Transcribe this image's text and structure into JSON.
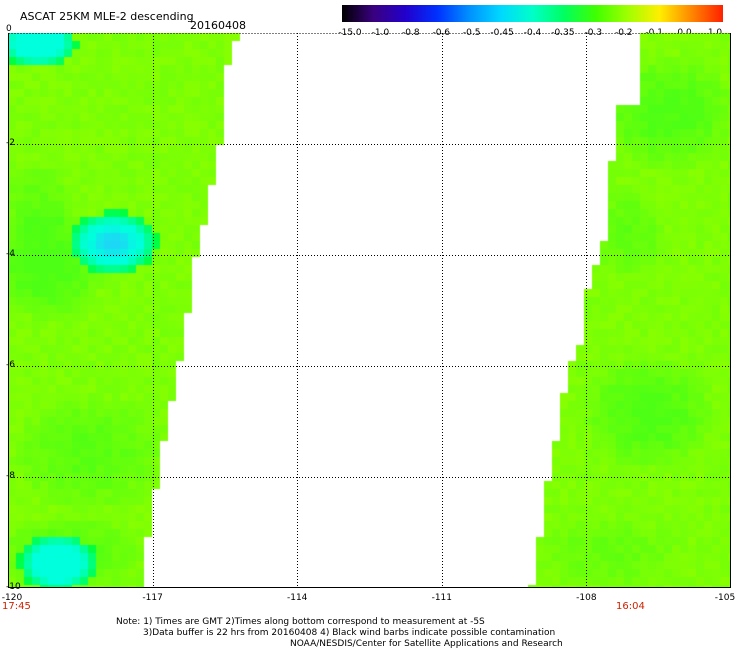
{
  "header": {
    "title": "ASCAT 25KM MLE-2 descending",
    "date": "20160408"
  },
  "colorbar": {
    "labels": [
      "-15.0",
      "-1.0",
      "-0.8",
      "-0.6",
      "-0.5",
      "-0.45",
      "-0.4",
      "-0.35",
      "-0.3",
      "-0.2",
      "-0.1",
      "0.0",
      "1.0"
    ],
    "colors": [
      "#000000",
      "#3a0080",
      "#2200cc",
      "#0030ff",
      "#0090ff",
      "#00d8ff",
      "#00ffc8",
      "#00ff60",
      "#40ff00",
      "#a0ff00",
      "#ffee00",
      "#ff8800",
      "#ff2000"
    ]
  },
  "axes": {
    "y_labels": [
      "0",
      "-2",
      "-4",
      "-6",
      "-8",
      "-10"
    ],
    "x_labels": [
      "-120",
      "-117",
      "-114",
      "-111",
      "-108",
      "-105"
    ],
    "time_left": "17:45",
    "time_right": "16:04"
  },
  "notes": {
    "line1": "Note: 1) Times are GMT 2)Times along bottom correspond to measurement at -5S",
    "line2": "3)Data buffer is 22 hrs from 20160408 4) Black wind barbs indicate possible contamination",
    "line3": "NOAA/NESDIS/Center for Satellite Applications and Research"
  },
  "map_colors": {
    "base": "#88ff00",
    "green": "#4cff14",
    "bright_green": "#00ff30",
    "cyan": "#00ffdd",
    "blue": "#28c8ff"
  }
}
